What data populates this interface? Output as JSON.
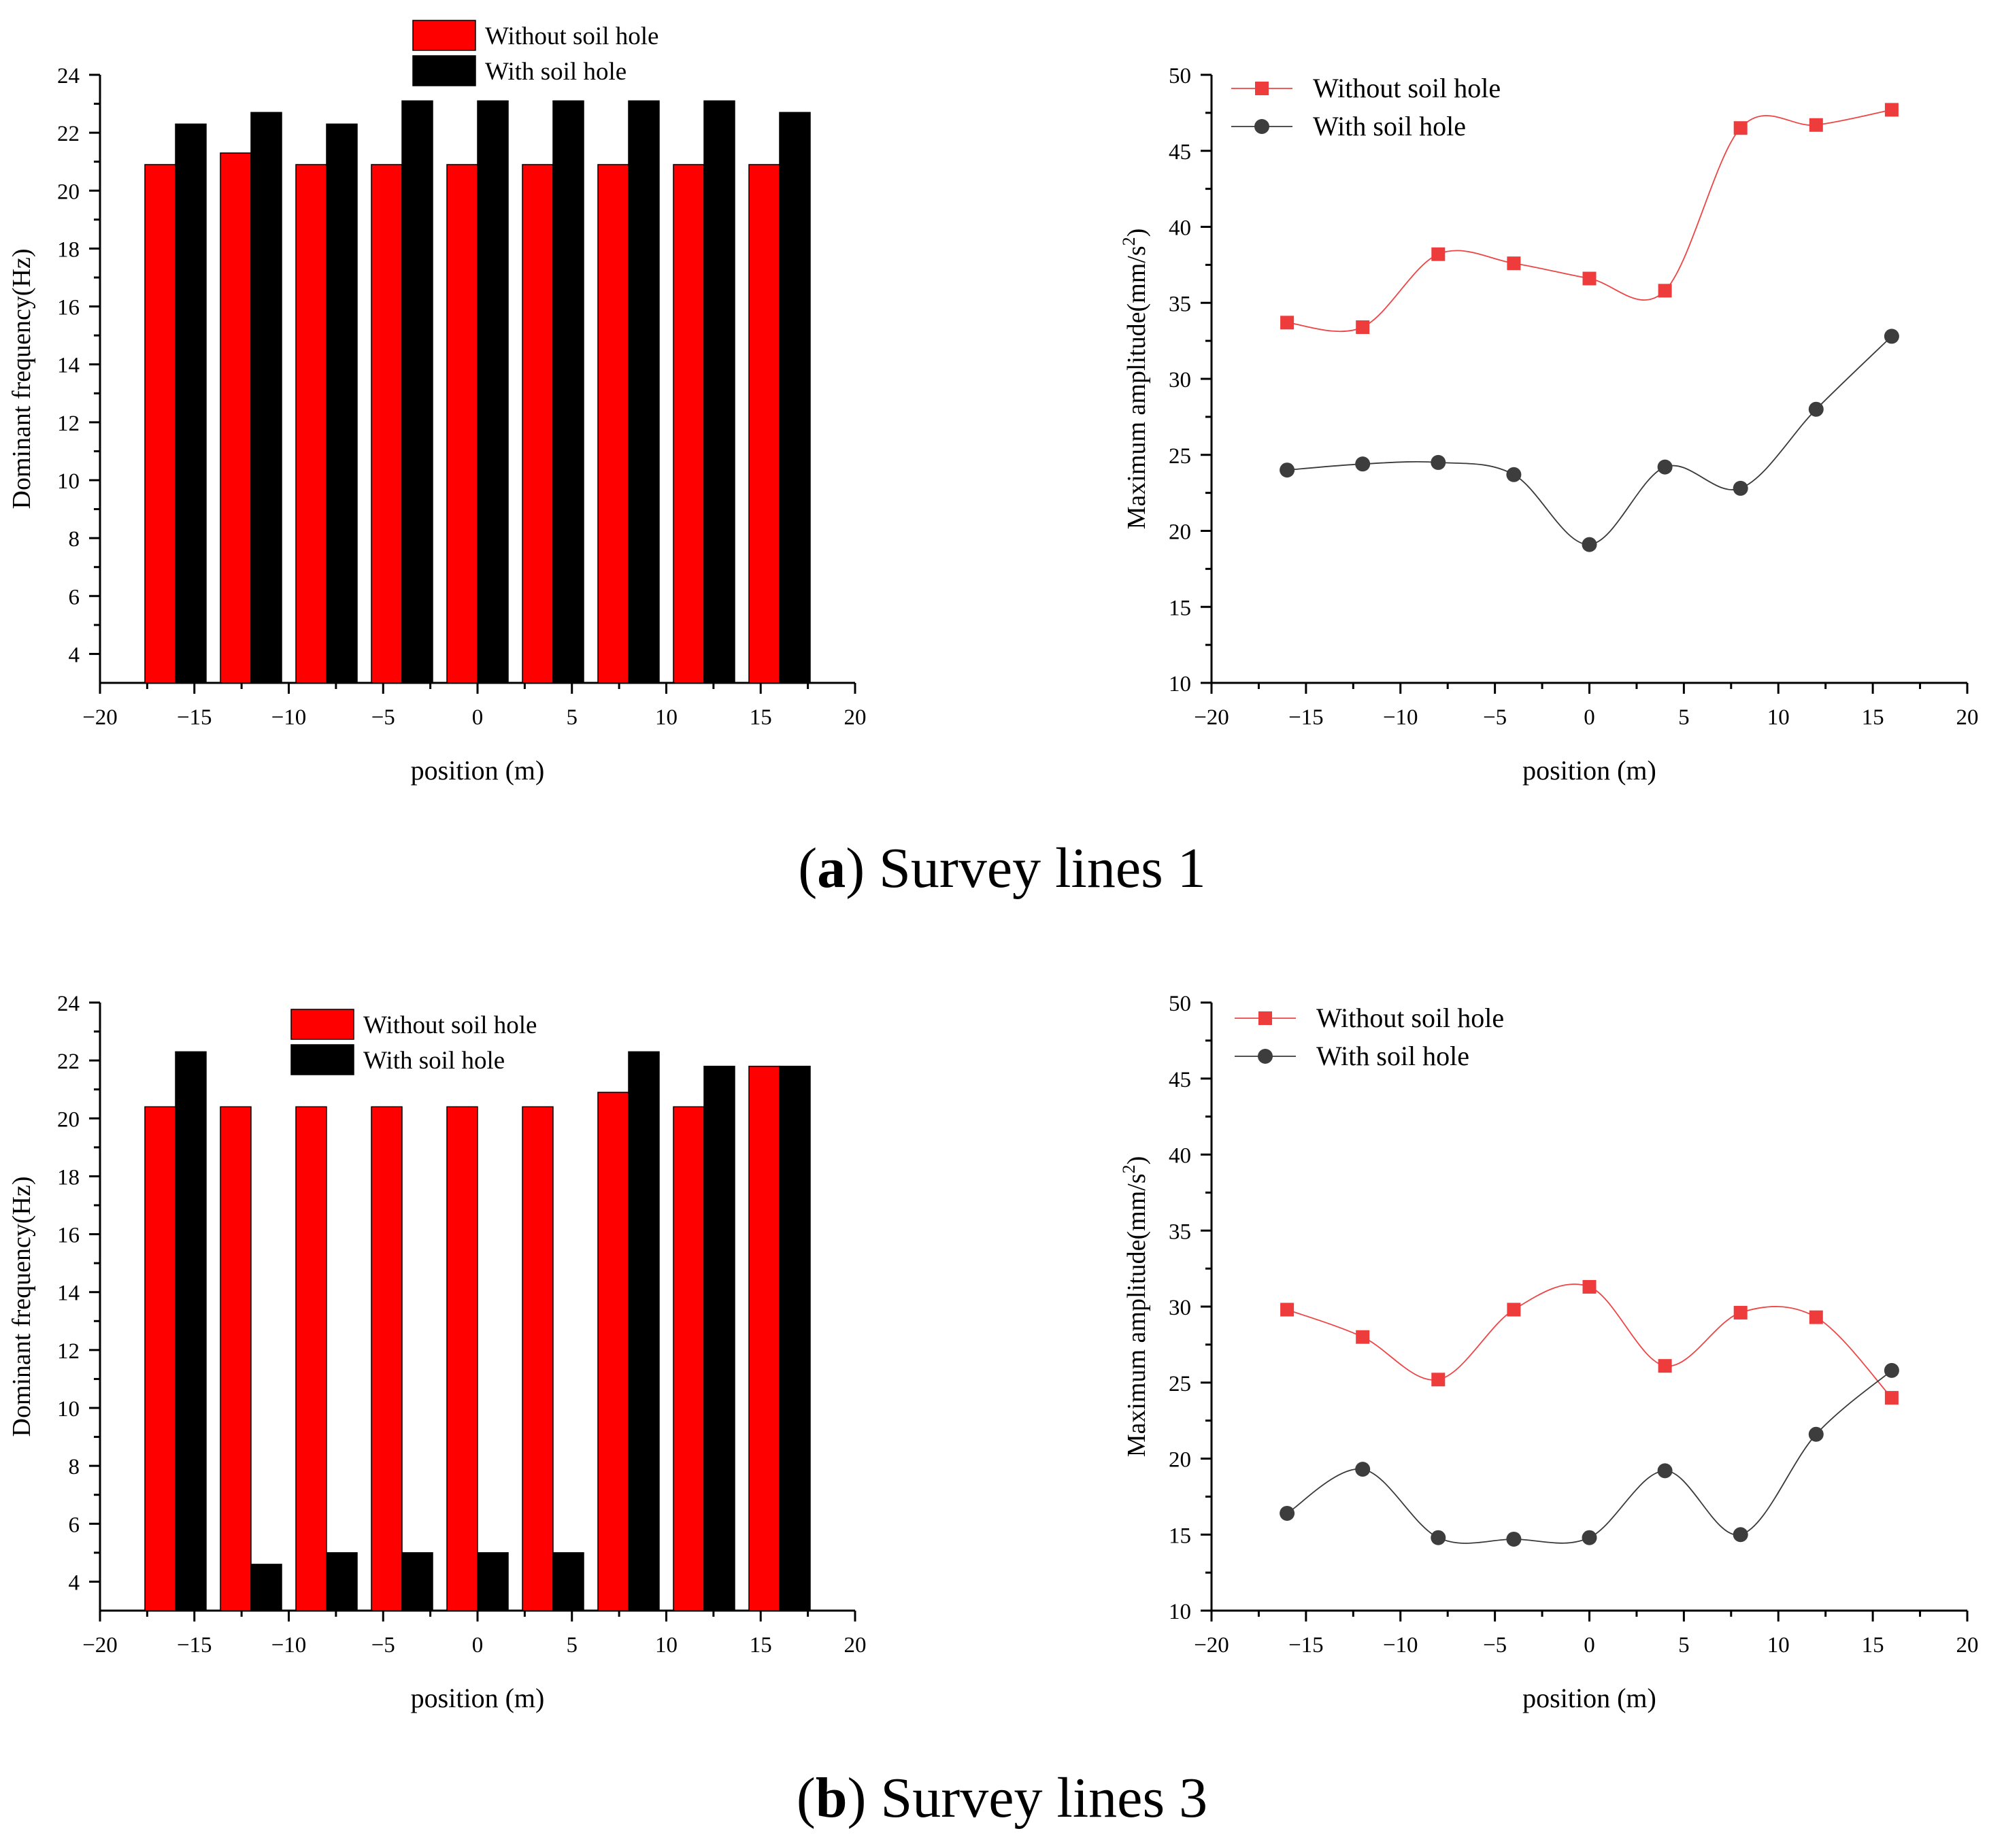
{
  "captions": [
    {
      "letter": "a",
      "open": "(",
      "close": ")",
      "text": " Survey lines 1"
    },
    {
      "letter": "b",
      "open": "(",
      "close": ")",
      "text": " Survey lines 3"
    }
  ],
  "colors": {
    "without": "#ff0000",
    "with": "#000000",
    "line_without": "#ee4444",
    "line_with": "#3a3a3a"
  },
  "chart_data": [
    {
      "type": "bar",
      "panel": "a-left",
      "xlabel": "position (m)",
      "ylabel": "Dominant frequency(Hz)",
      "xlim": [
        -20,
        20
      ],
      "ylim": [
        3,
        24
      ],
      "xticks": [
        "−20",
        "−15",
        "−10",
        "−5",
        "0",
        "5",
        "10",
        "15",
        "20"
      ],
      "yticks": [
        "4",
        "6",
        "8",
        "10",
        "12",
        "14",
        "16",
        "18",
        "20",
        "22",
        "24"
      ],
      "legend_position": "top-center",
      "x": [
        -16,
        -12,
        -8,
        -4,
        0,
        4,
        8,
        12,
        16
      ],
      "series": [
        {
          "name": "Without soil hole",
          "values": [
            20.9,
            21.3,
            20.9,
            20.9,
            20.9,
            20.9,
            20.9,
            20.9,
            20.9
          ]
        },
        {
          "name": "With soil hole",
          "values": [
            22.3,
            22.7,
            22.3,
            23.1,
            23.1,
            23.1,
            23.1,
            23.1,
            22.7
          ]
        }
      ]
    },
    {
      "type": "line",
      "panel": "a-right",
      "xlabel": "position (m)",
      "ylabel_main": "Maximum amplitude(mm/s",
      "ylabel_sup": "2",
      "ylabel_end": ")",
      "xlim": [
        -20,
        20
      ],
      "ylim": [
        10,
        50
      ],
      "xticks": [
        "−20",
        "−15",
        "−10",
        "−5",
        "0",
        "5",
        "10",
        "15",
        "20"
      ],
      "yticks": [
        "10",
        "15",
        "20",
        "25",
        "30",
        "35",
        "40",
        "45",
        "50"
      ],
      "legend_position": "top-left",
      "x": [
        -16,
        -12,
        -8,
        -4,
        0,
        4,
        8,
        12,
        16
      ],
      "series": [
        {
          "name": "Without soil hole",
          "marker": "square",
          "values": [
            33.7,
            33.4,
            38.2,
            37.6,
            36.6,
            35.8,
            46.5,
            46.7,
            47.7
          ]
        },
        {
          "name": "With soil hole",
          "marker": "circle",
          "values": [
            24.0,
            24.4,
            24.5,
            23.7,
            19.1,
            24.2,
            22.8,
            28.0,
            32.8
          ]
        }
      ]
    },
    {
      "type": "bar",
      "panel": "b-left",
      "xlabel": "position (m)",
      "ylabel": "Dominant frequency(Hz)",
      "xlim": [
        -20,
        20
      ],
      "ylim": [
        3,
        24
      ],
      "xticks": [
        "−20",
        "−15",
        "−10",
        "−5",
        "0",
        "5",
        "10",
        "15",
        "20"
      ],
      "yticks": [
        "4",
        "6",
        "8",
        "10",
        "12",
        "14",
        "16",
        "18",
        "20",
        "22",
        "24"
      ],
      "legend_position": "top-center",
      "x": [
        -16,
        -12,
        -8,
        -4,
        0,
        4,
        8,
        12,
        16
      ],
      "series": [
        {
          "name": "Without soil hole",
          "values": [
            20.4,
            20.4,
            20.4,
            20.4,
            20.4,
            20.4,
            20.9,
            20.4,
            21.8
          ]
        },
        {
          "name": "With soil hole",
          "values": [
            22.3,
            4.6,
            5.0,
            5.0,
            5.0,
            5.0,
            22.3,
            21.8,
            21.8
          ]
        }
      ]
    },
    {
      "type": "line",
      "panel": "b-right",
      "xlabel": "position (m)",
      "ylabel_main": "Maximum amplitude(mm/s",
      "ylabel_sup": "2",
      "ylabel_end": ")",
      "xlim": [
        -20,
        20
      ],
      "ylim": [
        10,
        50
      ],
      "xticks": [
        "−20",
        "−15",
        "−10",
        "−5",
        "0",
        "5",
        "10",
        "15",
        "20"
      ],
      "yticks": [
        "10",
        "15",
        "20",
        "25",
        "30",
        "35",
        "40",
        "45",
        "50"
      ],
      "legend_position": "top-left",
      "x": [
        -16,
        -12,
        -8,
        -4,
        0,
        4,
        8,
        12,
        16
      ],
      "series": [
        {
          "name": "Without soil hole",
          "marker": "square",
          "values": [
            29.8,
            28.0,
            25.2,
            29.8,
            31.3,
            26.1,
            29.6,
            29.3,
            24.0
          ]
        },
        {
          "name": "With soil hole",
          "marker": "circle",
          "values": [
            16.4,
            19.3,
            14.8,
            14.7,
            14.8,
            19.2,
            15.0,
            21.6,
            25.8
          ]
        }
      ]
    }
  ]
}
